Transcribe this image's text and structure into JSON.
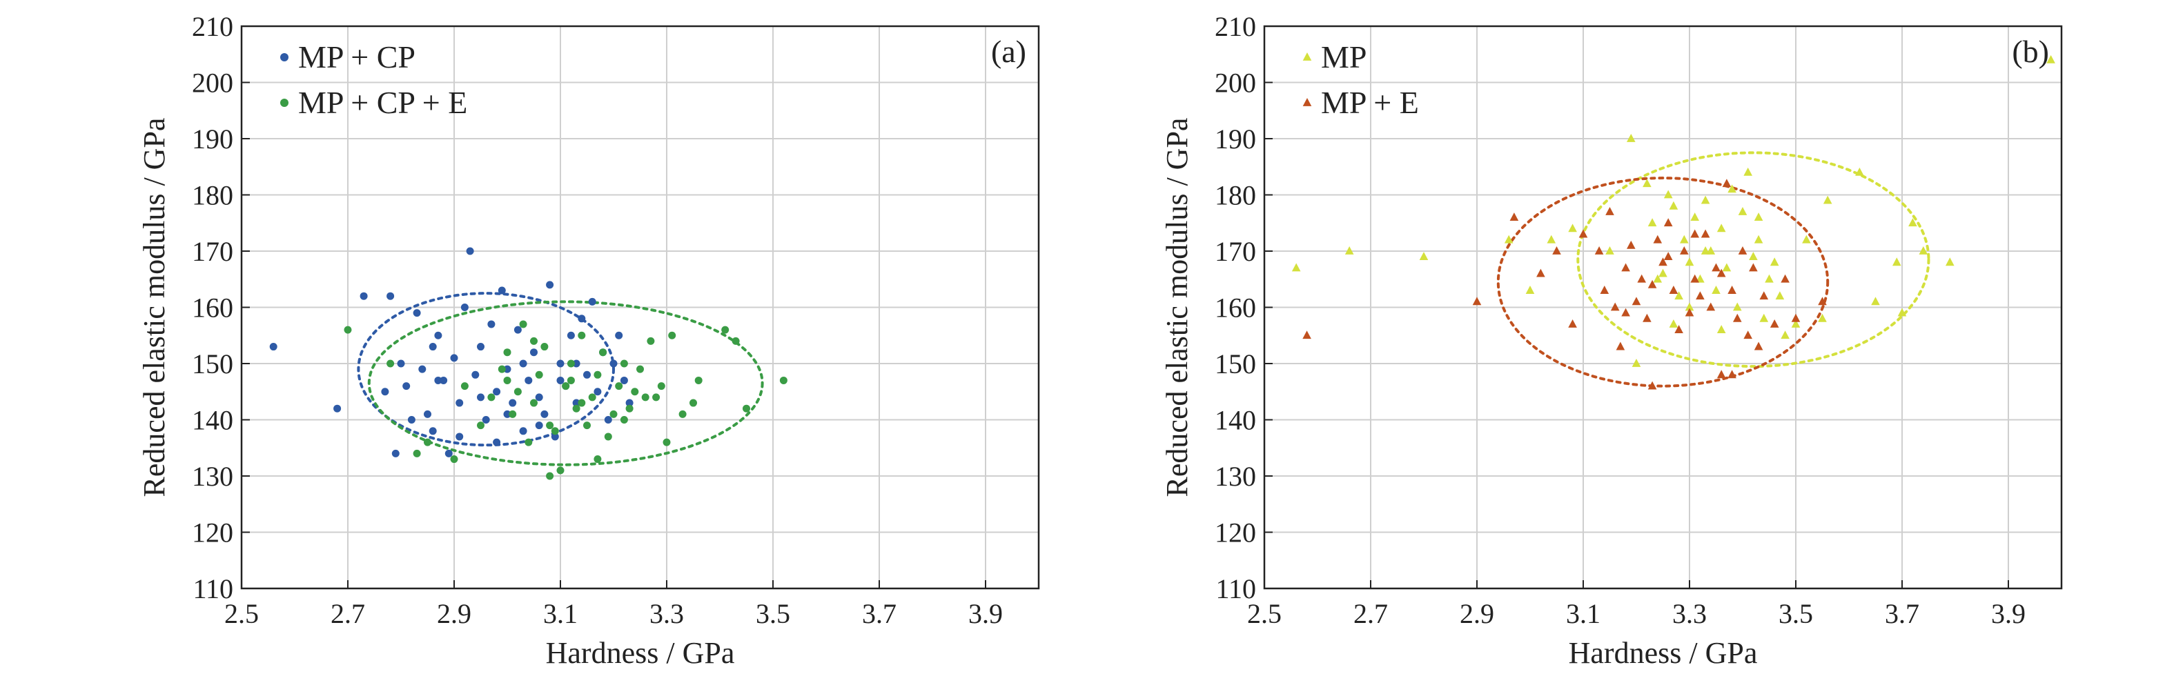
{
  "chart_data": [
    {
      "type": "scatter",
      "panel_label": "(a)",
      "xlabel": "Hardness / GPa",
      "ylabel": "Reduced elastic modulus / GPa",
      "xlim": [
        2.5,
        4.0
      ],
      "ylim": [
        110,
        210
      ],
      "xticks": [
        "2.5",
        "2.7",
        "2.9",
        "3.1",
        "3.3",
        "3.5",
        "3.7",
        "3.9"
      ],
      "yticks": [
        "110",
        "120",
        "130",
        "140",
        "150",
        "160",
        "170",
        "180",
        "190",
        "200",
        "210"
      ],
      "grid": true,
      "legend_position": "top-left",
      "series": [
        {
          "name": "MP + CP",
          "marker": "circle",
          "color": "#2e5aa6",
          "points": [
            [
              2.56,
              153
            ],
            [
              2.68,
              142
            ],
            [
              2.73,
              162
            ],
            [
              2.78,
              162
            ],
            [
              2.79,
              134
            ],
            [
              2.77,
              145
            ],
            [
              2.8,
              150
            ],
            [
              2.81,
              146
            ],
            [
              2.83,
              159
            ],
            [
              2.84,
              149
            ],
            [
              2.85,
              141
            ],
            [
              2.86,
              138
            ],
            [
              2.87,
              155
            ],
            [
              2.88,
              147
            ],
            [
              2.89,
              134
            ],
            [
              2.9,
              151
            ],
            [
              2.91,
              143
            ],
            [
              2.92,
              160
            ],
            [
              2.93,
              170
            ],
            [
              2.94,
              148
            ],
            [
              2.95,
              153
            ],
            [
              2.96,
              140
            ],
            [
              2.97,
              157
            ],
            [
              2.98,
              145
            ],
            [
              2.99,
              163
            ],
            [
              3.0,
              149
            ],
            [
              3.01,
              143
            ],
            [
              3.02,
              156
            ],
            [
              3.03,
              138
            ],
            [
              3.04,
              147
            ],
            [
              3.05,
              152
            ],
            [
              3.06,
              144
            ],
            [
              3.07,
              141
            ],
            [
              3.08,
              164
            ],
            [
              3.09,
              137
            ],
            [
              3.1,
              150
            ],
            [
              3.11,
              146
            ],
            [
              3.12,
              155
            ],
            [
              3.13,
              143
            ],
            [
              3.14,
              158
            ],
            [
              3.15,
              148
            ],
            [
              3.16,
              161
            ],
            [
              3.17,
              145
            ],
            [
              3.18,
              152
            ],
            [
              3.19,
              140
            ],
            [
              3.2,
              150
            ],
            [
              3.21,
              155
            ],
            [
              3.22,
              147
            ],
            [
              3.23,
              143
            ],
            [
              2.82,
              140
            ],
            [
              2.87,
              147
            ],
            [
              2.95,
              144
            ],
            [
              3.0,
              141
            ],
            [
              3.03,
              150
            ],
            [
              3.06,
              139
            ],
            [
              3.1,
              147
            ],
            [
              2.98,
              136
            ],
            [
              2.91,
              137
            ],
            [
              3.13,
              150
            ],
            [
              2.86,
              153
            ]
          ]
        },
        {
          "name": "MP + CP + E",
          "marker": "circle",
          "color": "#3a9c45",
          "points": [
            [
              2.7,
              156
            ],
            [
              2.78,
              150
            ],
            [
              2.83,
              134
            ],
            [
              2.85,
              136
            ],
            [
              2.9,
              133
            ],
            [
              2.92,
              146
            ],
            [
              2.95,
              139
            ],
            [
              2.97,
              144
            ],
            [
              2.99,
              149
            ],
            [
              3.0,
              152
            ],
            [
              3.01,
              141
            ],
            [
              3.02,
              145
            ],
            [
              3.03,
              157
            ],
            [
              3.04,
              136
            ],
            [
              3.05,
              143
            ],
            [
              3.06,
              148
            ],
            [
              3.07,
              153
            ],
            [
              3.08,
              130
            ],
            [
              3.09,
              138
            ],
            [
              3.1,
              131
            ],
            [
              3.11,
              146
            ],
            [
              3.12,
              150
            ],
            [
              3.13,
              142
            ],
            [
              3.14,
              155
            ],
            [
              3.15,
              139
            ],
            [
              3.16,
              144
            ],
            [
              3.17,
              148
            ],
            [
              3.18,
              152
            ],
            [
              3.19,
              137
            ],
            [
              3.2,
              141
            ],
            [
              3.21,
              146
            ],
            [
              3.22,
              150
            ],
            [
              3.23,
              142
            ],
            [
              3.24,
              145
            ],
            [
              3.25,
              149
            ],
            [
              3.27,
              154
            ],
            [
              3.29,
              146
            ],
            [
              3.3,
              136
            ],
            [
              3.31,
              155
            ],
            [
              3.33,
              141
            ],
            [
              3.35,
              143
            ],
            [
              3.36,
              147
            ],
            [
              3.41,
              156
            ],
            [
              3.43,
              154
            ],
            [
              3.45,
              142
            ],
            [
              3.52,
              147
            ],
            [
              3.17,
              133
            ],
            [
              3.26,
              144
            ],
            [
              3.12,
              147
            ],
            [
              3.05,
              154
            ],
            [
              3.22,
              140
            ],
            [
              3.0,
              147
            ],
            [
              3.08,
              139
            ],
            [
              3.14,
              143
            ],
            [
              3.28,
              144
            ]
          ]
        }
      ],
      "ellipses": [
        {
          "series": "MP + CP",
          "center": [
            2.96,
            149
          ],
          "radius": [
            0.24,
            13.5
          ],
          "style": "dotted"
        },
        {
          "series": "MP + CP + E",
          "center": [
            3.11,
            146.5
          ],
          "radius": [
            0.37,
            14.5
          ],
          "style": "dotted"
        }
      ]
    },
    {
      "type": "scatter",
      "panel_label": "(b)",
      "xlabel": "Hardness / GPa",
      "ylabel": "Reduced elastic modulus / GPa",
      "xlim": [
        2.5,
        4.0
      ],
      "ylim": [
        110,
        210
      ],
      "xticks": [
        "2.5",
        "2.7",
        "2.9",
        "3.1",
        "3.3",
        "3.5",
        "3.7",
        "3.9"
      ],
      "yticks": [
        "110",
        "120",
        "130",
        "140",
        "150",
        "160",
        "170",
        "180",
        "190",
        "200",
        "210"
      ],
      "grid": true,
      "legend_position": "top-left",
      "series": [
        {
          "name": "MP",
          "marker": "triangle",
          "color": "#d4e03c",
          "points": [
            [
              2.56,
              167
            ],
            [
              2.66,
              170
            ],
            [
              2.8,
              169
            ],
            [
              2.96,
              172
            ],
            [
              3.0,
              163
            ],
            [
              3.04,
              172
            ],
            [
              3.08,
              174
            ],
            [
              3.15,
              170
            ],
            [
              3.19,
              190
            ],
            [
              3.2,
              150
            ],
            [
              3.22,
              182
            ],
            [
              3.23,
              175
            ],
            [
              3.25,
              166
            ],
            [
              3.26,
              180
            ],
            [
              3.27,
              178
            ],
            [
              3.28,
              162
            ],
            [
              3.29,
              172
            ],
            [
              3.3,
              168
            ],
            [
              3.31,
              176
            ],
            [
              3.32,
              165
            ],
            [
              3.33,
              179
            ],
            [
              3.34,
              170
            ],
            [
              3.35,
              163
            ],
            [
              3.36,
              174
            ],
            [
              3.37,
              167
            ],
            [
              3.38,
              181
            ],
            [
              3.39,
              160
            ],
            [
              3.4,
              177
            ],
            [
              3.41,
              184
            ],
            [
              3.42,
              169
            ],
            [
              3.43,
              172
            ],
            [
              3.44,
              158
            ],
            [
              3.45,
              165
            ],
            [
              3.46,
              168
            ],
            [
              3.47,
              162
            ],
            [
              3.48,
              155
            ],
            [
              3.5,
              157
            ],
            [
              3.52,
              172
            ],
            [
              3.55,
              158
            ],
            [
              3.56,
              179
            ],
            [
              3.62,
              184
            ],
            [
              3.65,
              161
            ],
            [
              3.69,
              168
            ],
            [
              3.7,
              159
            ],
            [
              3.72,
              175
            ],
            [
              3.74,
              170
            ],
            [
              3.79,
              168
            ],
            [
              3.98,
              204
            ],
            [
              3.27,
              157
            ],
            [
              3.24,
              165
            ],
            [
              3.36,
              156
            ],
            [
              3.33,
              170
            ],
            [
              3.43,
              176
            ],
            [
              3.3,
              160
            ]
          ]
        },
        {
          "name": "MP + E",
          "marker": "triangle",
          "color": "#c0501e",
          "points": [
            [
              2.58,
              155
            ],
            [
              2.9,
              161
            ],
            [
              2.97,
              176
            ],
            [
              3.02,
              166
            ],
            [
              3.05,
              170
            ],
            [
              3.08,
              157
            ],
            [
              3.1,
              173
            ],
            [
              3.13,
              170
            ],
            [
              3.14,
              163
            ],
            [
              3.15,
              177
            ],
            [
              3.16,
              160
            ],
            [
              3.17,
              153
            ],
            [
              3.18,
              167
            ],
            [
              3.19,
              171
            ],
            [
              3.2,
              161
            ],
            [
              3.21,
              165
            ],
            [
              3.22,
              158
            ],
            [
              3.23,
              146
            ],
            [
              3.24,
              172
            ],
            [
              3.25,
              168
            ],
            [
              3.26,
              175
            ],
            [
              3.27,
              163
            ],
            [
              3.28,
              156
            ],
            [
              3.29,
              170
            ],
            [
              3.3,
              159
            ],
            [
              3.31,
              165
            ],
            [
              3.32,
              162
            ],
            [
              3.33,
              173
            ],
            [
              3.34,
              160
            ],
            [
              3.35,
              167
            ],
            [
              3.36,
              148
            ],
            [
              3.37,
              182
            ],
            [
              3.38,
              163
            ],
            [
              3.39,
              158
            ],
            [
              3.4,
              170
            ],
            [
              3.41,
              155
            ],
            [
              3.42,
              167
            ],
            [
              3.43,
              153
            ],
            [
              3.44,
              162
            ],
            [
              3.46,
              157
            ],
            [
              3.48,
              165
            ],
            [
              3.5,
              158
            ],
            [
              3.55,
              161
            ],
            [
              3.26,
              169
            ],
            [
              3.31,
              173
            ],
            [
              3.36,
              166
            ],
            [
              3.23,
              164
            ],
            [
              3.18,
              159
            ],
            [
              3.38,
              148
            ]
          ]
        }
      ],
      "ellipses": [
        {
          "series": "MP",
          "center": [
            3.42,
            168.5
          ],
          "radius": [
            0.33,
            19
          ],
          "style": "dotted"
        },
        {
          "series": "MP + E",
          "center": [
            3.25,
            164.5
          ],
          "radius": [
            0.31,
            18.5
          ],
          "style": "dotted"
        }
      ]
    }
  ]
}
